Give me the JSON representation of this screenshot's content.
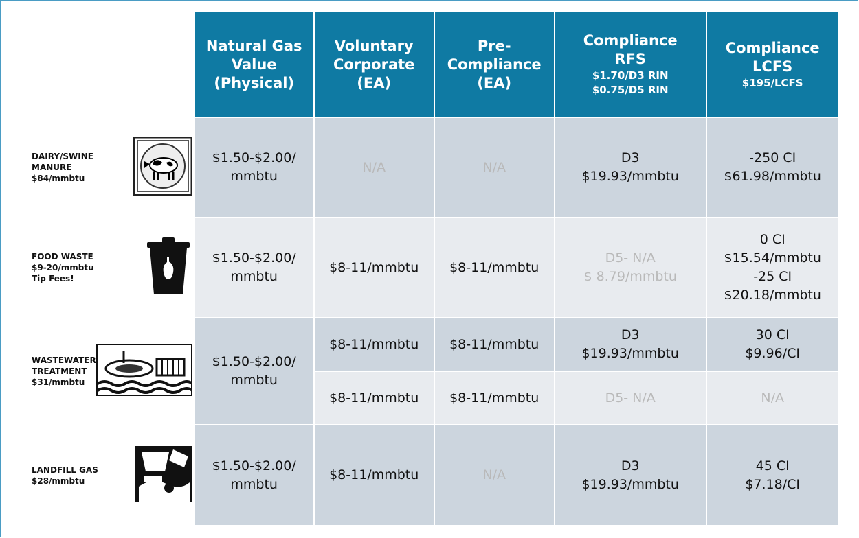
{
  "table": {
    "headers": [
      {
        "lines": [
          "Natural Gas",
          "Value",
          "(Physical)"
        ]
      },
      {
        "lines": [
          "Voluntary",
          "Corporate",
          "(EA)"
        ]
      },
      {
        "lines": [
          "Pre-",
          "Compliance",
          "(EA)"
        ]
      },
      {
        "lines": [
          "Compliance",
          "RFS"
        ],
        "sub": [
          "$1.70/D3 RIN",
          "$0.75/D5 RIN"
        ]
      },
      {
        "lines": [
          "Compliance",
          "LCFS"
        ],
        "sub": [
          "$195/LCFS"
        ]
      }
    ],
    "rows": [
      {
        "label": [
          "DAIRY/SWINE",
          "MANURE",
          "$84/mmbtu"
        ],
        "cells": [
          {
            "lines": [
              "$1.50-$2.00/",
              "mmbtu"
            ]
          },
          {
            "lines": [
              "N/A"
            ],
            "muted": true
          },
          {
            "lines": [
              "N/A"
            ],
            "muted": true
          },
          {
            "lines": [
              "D3",
              "$19.93/mmbtu"
            ]
          },
          {
            "lines": [
              "-250 CI",
              "$61.98/mmbtu"
            ]
          }
        ]
      },
      {
        "label": [
          "FOOD WASTE",
          "$9-20/mmbtu",
          "Tip Fees!"
        ],
        "cells": [
          {
            "lines": [
              "$1.50-$2.00/",
              "mmbtu"
            ]
          },
          {
            "lines": [
              "$8-11/mmbtu"
            ]
          },
          {
            "lines": [
              "$8-11/mmbtu"
            ]
          },
          {
            "lines": [
              "D5- N/A",
              "$ 8.79/mmbtu"
            ],
            "muted": true
          },
          {
            "lines": [
              "0 CI",
              "$15.54/mmbtu",
              "-25 CI",
              "$20.18/mmbtu"
            ]
          }
        ]
      },
      {
        "label": [
          "WASTEWATER",
          "TREATMENT",
          "$31/mmbtu"
        ],
        "cells": [
          {
            "lines": [
              "$1.50-$2.00/",
              "mmbtu"
            ]
          },
          {
            "lines": [
              "$8-11/mmbtu"
            ]
          },
          {
            "lines": [
              "$8-11/mmbtu"
            ]
          },
          {
            "lines": [
              "D3",
              "$19.93/mmbtu"
            ]
          },
          {
            "lines": [
              "30 CI",
              "$9.96/CI"
            ]
          }
        ],
        "second_cells": [
          {
            "lines": [
              "$8-11/mmbtu"
            ]
          },
          {
            "lines": [
              "$8-11/mmbtu"
            ]
          },
          {
            "lines": [
              "D5- N/A"
            ],
            "muted": true
          },
          {
            "lines": [
              "N/A"
            ],
            "muted": true
          }
        ]
      },
      {
        "label": [
          "LANDFILL GAS",
          "$28/mmbtu"
        ],
        "cells": [
          {
            "lines": [
              "$1.50-$2.00/",
              "mmbtu"
            ]
          },
          {
            "lines": [
              "$8-11/mmbtu"
            ]
          },
          {
            "lines": [
              "N/A"
            ],
            "muted": true
          },
          {
            "lines": [
              "D3",
              "$19.93/mmbtu"
            ]
          },
          {
            "lines": [
              "45 CI",
              "$7.18/CI"
            ]
          }
        ]
      }
    ]
  }
}
